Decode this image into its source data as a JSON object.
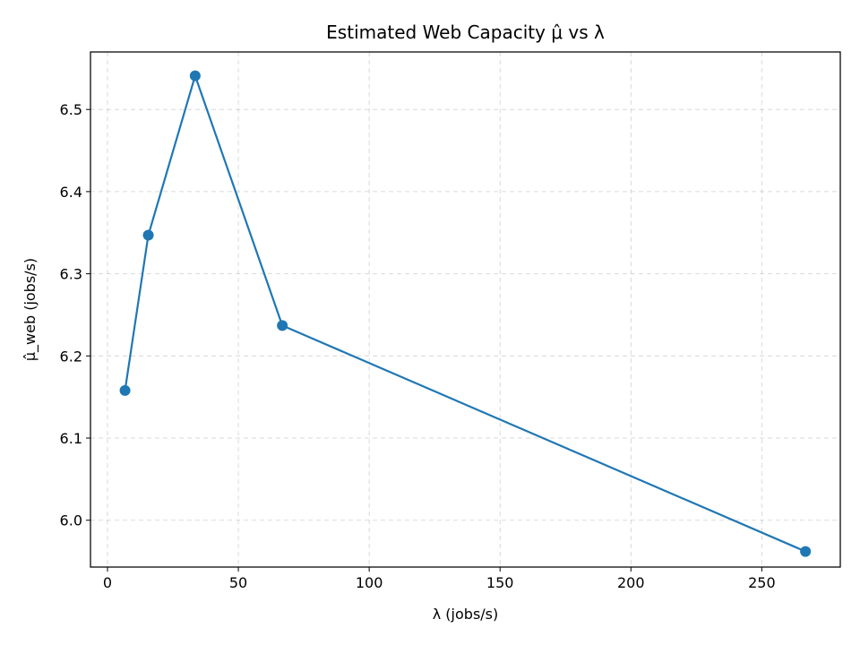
{
  "chart_data": {
    "type": "line",
    "title": "Estimated Web Capacity μ̂ vs λ",
    "xlabel": "λ (jobs/s)",
    "ylabel": "μ̂_web (jobs/s)",
    "xlim": [
      -6.5,
      280
    ],
    "ylim": [
      5.943,
      6.57
    ],
    "xticks": [
      0,
      50,
      100,
      150,
      200,
      250
    ],
    "xtick_labels": [
      "0",
      "50",
      "100",
      "150",
      "200",
      "250"
    ],
    "yticks": [
      6.0,
      6.1,
      6.2,
      6.3,
      6.4,
      6.5
    ],
    "ytick_labels": [
      "6.0",
      "6.1",
      "6.2",
      "6.3",
      "6.4",
      "6.5"
    ],
    "grid": true,
    "series": [
      {
        "x": [
          6.7,
          15.6,
          33.5,
          66.8,
          266.7
        ],
        "y": [
          6.158,
          6.347,
          6.541,
          6.237,
          5.962
        ],
        "color": "#1f77b4",
        "marker": "circle"
      }
    ]
  }
}
